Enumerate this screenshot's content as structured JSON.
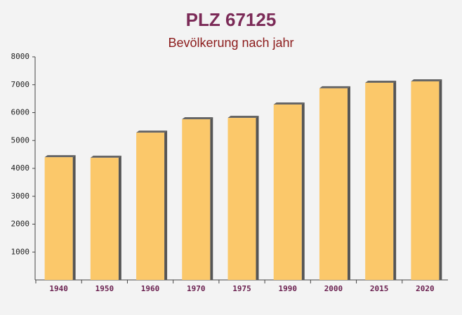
{
  "chart_data": {
    "type": "bar",
    "title": "PLZ 67125",
    "subtitle": "Bevölkerung nach jahr",
    "categories": [
      "1940",
      "1950",
      "1960",
      "1970",
      "1975",
      "1990",
      "2000",
      "2015",
      "2020"
    ],
    "values": [
      4400,
      4380,
      5280,
      5760,
      5810,
      6290,
      6870,
      7070,
      7120
    ],
    "color": "#fbc86a",
    "ylim": [
      0,
      8000
    ],
    "yticks": [
      1000,
      2000,
      3000,
      4000,
      5000,
      6000,
      7000,
      8000
    ]
  }
}
